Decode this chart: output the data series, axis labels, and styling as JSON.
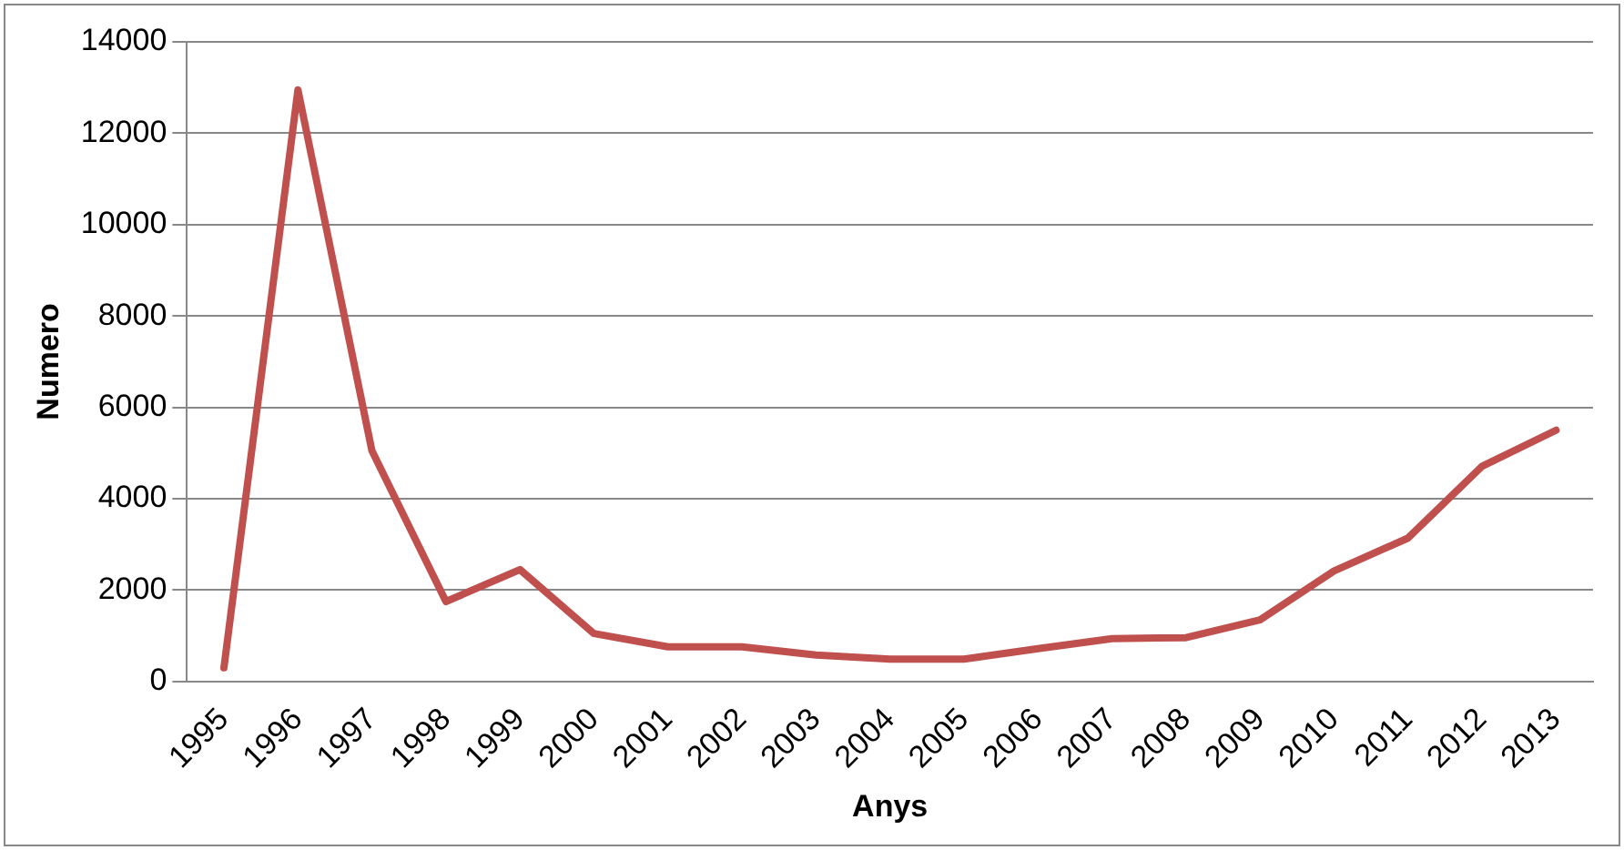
{
  "chart_data": {
    "type": "line",
    "xlabel": "Anys",
    "ylabel": "Numero",
    "categories": [
      "1995",
      "1996",
      "1997",
      "1998",
      "1999",
      "2000",
      "2001",
      "2002",
      "2003",
      "2004",
      "2005",
      "2006",
      "2007",
      "2008",
      "2009",
      "2010",
      "2011",
      "2012",
      "2013"
    ],
    "series": [
      {
        "color": "#c0504d",
        "values": [
          300,
          12950,
          5050,
          1750,
          2450,
          1050,
          760,
          760,
          580,
          490,
          490,
          720,
          940,
          960,
          1350,
          2420,
          3140,
          4710,
          5500
        ]
      }
    ],
    "ylim": [
      0,
      14000
    ],
    "yticks": [
      0,
      2000,
      4000,
      6000,
      8000,
      10000,
      12000,
      14000
    ],
    "grid": "y",
    "legend": false,
    "marker": "none",
    "line_style": "solid"
  }
}
